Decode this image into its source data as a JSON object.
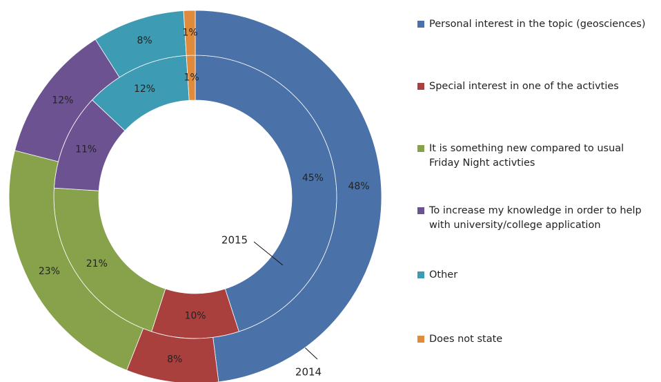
{
  "chart_data": {
    "type": "donut",
    "categories": [
      "Personal interest in the topic (geosciences)",
      "Special interest in one of the activties",
      "It is something new compared to usual Friday Night activties",
      "To increase my knowledge in order to help with university/college application",
      "Other",
      "Does not state"
    ],
    "colors": [
      "#4a72a8",
      "#a9403e",
      "#87a24a",
      "#6d5292",
      "#3d9bb3",
      "#e08a3c"
    ],
    "series": [
      {
        "name": "2015",
        "values": [
          45,
          10,
          21,
          11,
          12,
          1
        ],
        "value_labels": [
          "45%",
          "10%",
          "21%",
          "11%",
          "12%",
          "1%"
        ]
      },
      {
        "name": "2014",
        "values": [
          48,
          8,
          23,
          12,
          8,
          1
        ],
        "value_labels": [
          "48%",
          "8%",
          "23%",
          "12%",
          "8%",
          "1%"
        ]
      }
    ]
  }
}
